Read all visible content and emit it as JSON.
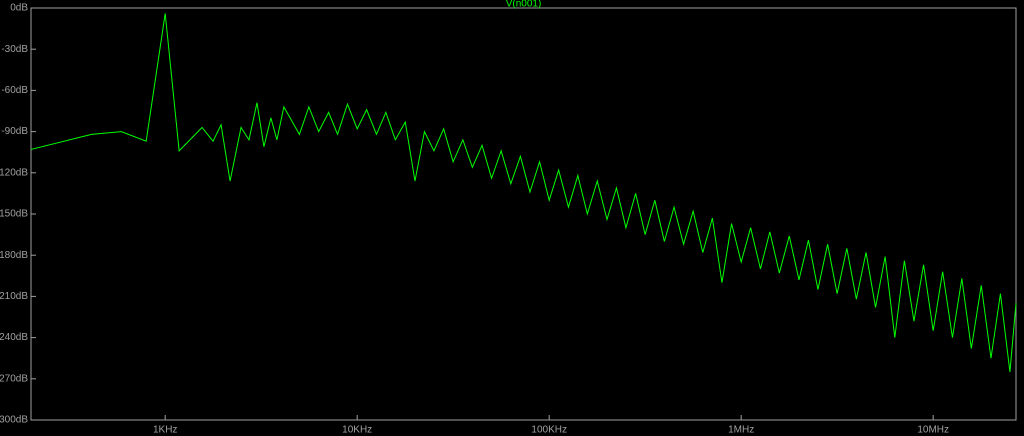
{
  "chart_data": {
    "type": "line",
    "xscale": "log",
    "background": "#000000",
    "axis_color": "#a0a0a0",
    "x": [
      200,
      413,
      591,
      796,
      1000,
      1182,
      1556,
      1775,
      1954,
      2177,
      2483,
      2731,
      3006,
      3267,
      3553,
      3817,
      4150,
      5000,
      5600,
      6300,
      7100,
      7900,
      8900,
      10000,
      11200,
      12600,
      14100,
      15800,
      17800,
      20000,
      22400,
      25100,
      28200,
      31600,
      35500,
      39800,
      44700,
      50100,
      56200,
      63100,
      70800,
      79400,
      89100,
      100000,
      112000,
      126000,
      141000,
      158000,
      178000,
      200000,
      224000,
      251000,
      282000,
      316000,
      355000,
      398000,
      447000,
      501000,
      562000,
      631000,
      708000,
      794000,
      891000,
      1000000,
      1120000,
      1260000,
      1410000,
      1580000,
      1780000,
      2000000,
      2240000,
      2510000,
      2820000,
      3160000,
      3550000,
      3980000,
      4470000,
      5010000,
      5620000,
      6310000,
      7080000,
      7940000,
      8910000,
      10000000,
      11200000,
      12600000,
      14100000,
      15800000,
      17800000,
      20000000,
      22400000,
      25100000,
      27000000
    ],
    "series": [
      {
        "name": "V(n001)",
        "color": "#00ff00",
        "values": [
          -103,
          -92,
          -90,
          -97,
          -4,
          -104,
          -87,
          -97,
          -85,
          -126,
          -87,
          -96,
          -69,
          -101,
          -80,
          -96,
          -72,
          -92,
          -72,
          -90,
          -76,
          -92,
          -70,
          -88,
          -74,
          -92,
          -76,
          -96,
          -83,
          -126,
          -90,
          -104,
          -88,
          -112,
          -96,
          -116,
          -100,
          -124,
          -104,
          -128,
          -108,
          -134,
          -112,
          -140,
          -118,
          -145,
          -122,
          -150,
          -126,
          -154,
          -131,
          -160,
          -135,
          -165,
          -140,
          -170,
          -145,
          -172,
          -148,
          -178,
          -153,
          -200,
          -157,
          -185,
          -160,
          -190,
          -163,
          -193,
          -166,
          -198,
          -169,
          -205,
          -172,
          -208,
          -175,
          -212,
          -178,
          -218,
          -181,
          -240,
          -184,
          -228,
          -187,
          -235,
          -192,
          -240,
          -197,
          -248,
          -202,
          -255,
          -208,
          -265,
          -215
        ]
      }
    ],
    "xlim": [
      200,
      27000000
    ],
    "xticks": [
      {
        "value": 1000,
        "label": "1KHz"
      },
      {
        "value": 10000,
        "label": "10KHz"
      },
      {
        "value": 100000,
        "label": "100KHz"
      },
      {
        "value": 1000000,
        "label": "1MHz"
      },
      {
        "value": 10000000,
        "label": "10MHz"
      }
    ],
    "ylim": [
      -300,
      0
    ],
    "yticks": [
      {
        "value": 0,
        "label": "0dB"
      },
      {
        "value": -30,
        "label": "-30dB"
      },
      {
        "value": -60,
        "label": "-60dB"
      },
      {
        "value": -90,
        "label": "-90dB"
      },
      {
        "value": -120,
        "label": "-120dB"
      },
      {
        "value": -150,
        "label": "-150dB"
      },
      {
        "value": -180,
        "label": "-180dB"
      },
      {
        "value": -210,
        "label": "-210dB"
      },
      {
        "value": -240,
        "label": "-240dB"
      },
      {
        "value": -270,
        "label": "-270dB"
      },
      {
        "value": -300,
        "label": "-300dB"
      }
    ]
  }
}
